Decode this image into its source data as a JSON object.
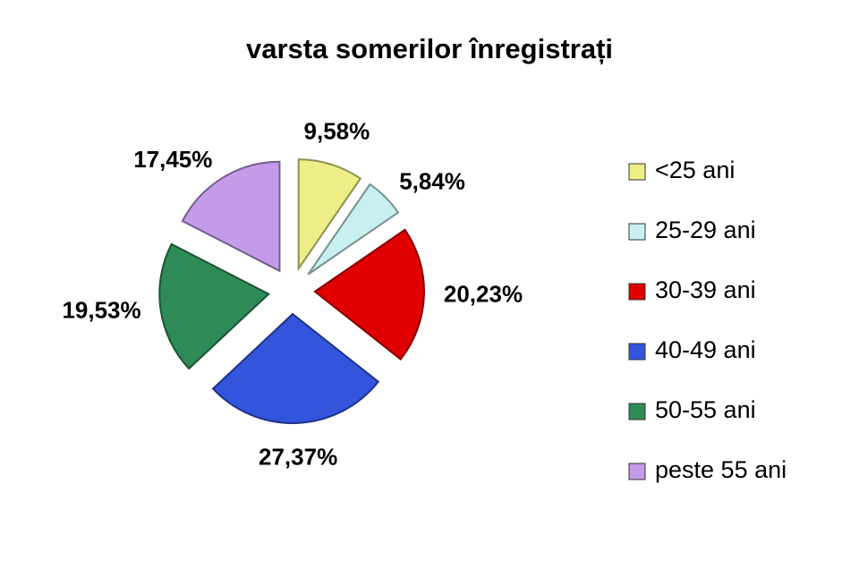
{
  "chart_data": {
    "type": "pie",
    "title": "varsta somerilor înregistrați",
    "categories": [
      "<25 ani",
      "25-29 ani",
      "30-39 ani",
      "40-49 ani",
      "50-55 ani",
      "peste 55 ani"
    ],
    "values": [
      9.58,
      5.84,
      20.23,
      27.37,
      19.53,
      17.45
    ],
    "value_labels": [
      "9,58%",
      "5,84%",
      "20,23%",
      "27,37%",
      "19,53%",
      "17,45%"
    ],
    "colors": [
      "#eeee88",
      "#c8f0f0",
      "#e00000",
      "#3355dd",
      "#2e8b57",
      "#c39be8"
    ],
    "legend": "right"
  }
}
